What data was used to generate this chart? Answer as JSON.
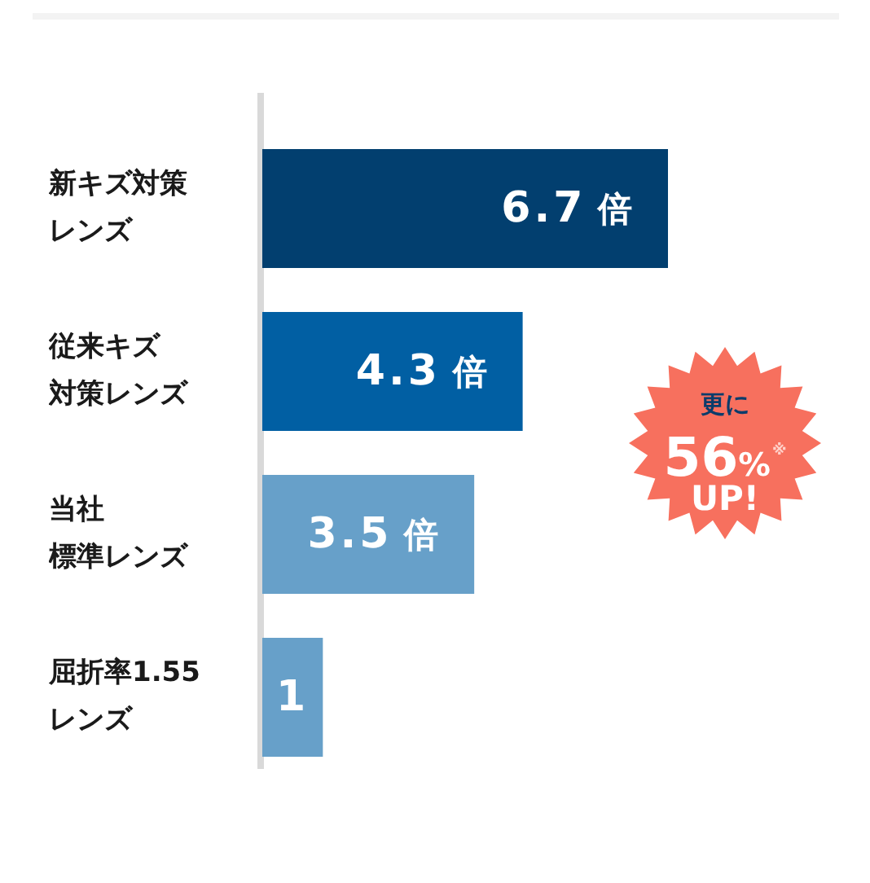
{
  "chart_data": {
    "type": "bar",
    "orientation": "horizontal",
    "categories": [
      "新キズ対策レンズ",
      "従来キズ対策レンズ",
      "当社標準レンズ",
      "屈折率1.55レンズ"
    ],
    "values": [
      6.7,
      4.3,
      3.5,
      1
    ],
    "colors": [
      "#023f6f",
      "#015fa3",
      "#67a0c9",
      "#67a0c9"
    ],
    "value_labels": [
      "6.7 倍",
      "4.3 倍",
      "3.5 倍",
      "1"
    ],
    "annotations": [
      "更に\n56%$^{※}$\nUP!"
    ],
    "tick_labels": "y"
  }
}
